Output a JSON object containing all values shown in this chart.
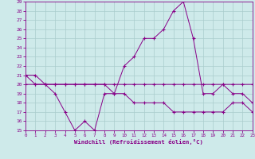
{
  "xlabel": "Windchill (Refroidissement éolien,°C)",
  "bg_color": "#ceeaea",
  "grid_color": "#aacccc",
  "line_color": "#880088",
  "x": [
    0,
    1,
    2,
    3,
    4,
    5,
    6,
    7,
    8,
    9,
    10,
    11,
    12,
    13,
    14,
    15,
    16,
    17,
    18,
    19,
    20,
    21,
    22,
    23
  ],
  "line1": [
    21,
    21,
    20,
    20,
    20,
    20,
    20,
    20,
    20,
    20,
    20,
    20,
    20,
    20,
    20,
    20,
    20,
    20,
    20,
    20,
    20,
    20,
    20,
    20
  ],
  "line2": [
    20,
    20,
    20,
    19,
    17,
    15,
    16,
    15,
    19,
    19,
    22,
    23,
    25,
    25,
    26,
    28,
    29,
    25,
    19,
    19,
    20,
    19,
    19,
    18
  ],
  "line3": [
    21,
    20,
    20,
    20,
    20,
    20,
    20,
    20,
    20,
    19,
    19,
    18,
    18,
    18,
    18,
    17,
    17,
    17,
    17,
    17,
    17,
    18,
    18,
    17
  ],
  "ylim": [
    15,
    29
  ],
  "xlim": [
    0,
    23
  ],
  "yticks": [
    15,
    16,
    17,
    18,
    19,
    20,
    21,
    22,
    23,
    24,
    25,
    26,
    27,
    28,
    29
  ],
  "xticks": [
    0,
    1,
    2,
    3,
    4,
    5,
    6,
    7,
    8,
    9,
    10,
    11,
    12,
    13,
    14,
    15,
    16,
    17,
    18,
    19,
    20,
    21,
    22,
    23
  ]
}
